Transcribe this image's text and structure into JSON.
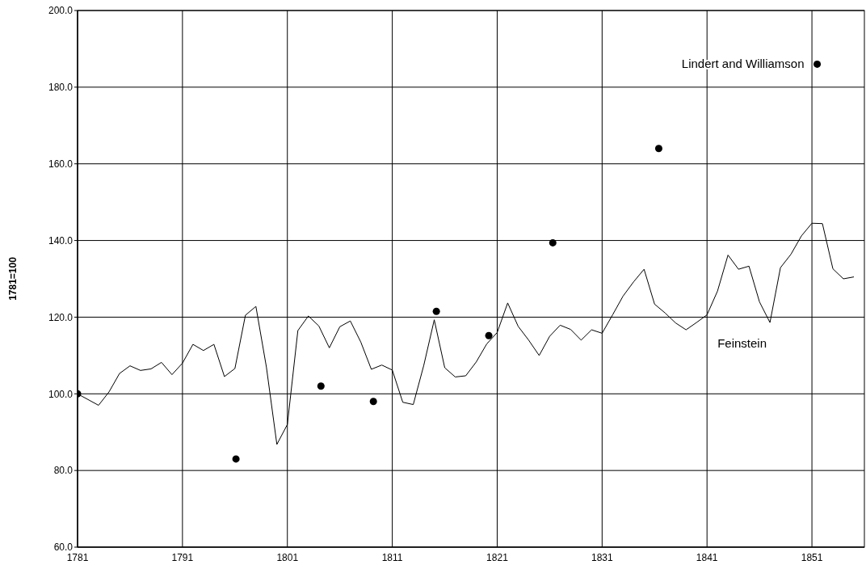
{
  "chart_data": {
    "type": "line",
    "ylabel": "1781=100",
    "xlim": [
      1781,
      1856
    ],
    "xticks": [
      1781,
      1791,
      1801,
      1811,
      1821,
      1831,
      1841,
      1851
    ],
    "ylim": [
      60,
      200
    ],
    "yticks": [
      {
        "value": 60,
        "label": "60.0"
      },
      {
        "value": 80,
        "label": "80.0"
      },
      {
        "value": 100,
        "label": "100.0"
      },
      {
        "value": 120,
        "label": "120.0"
      },
      {
        "value": 140,
        "label": "140.0"
      },
      {
        "value": 160,
        "label": "160.0"
      },
      {
        "value": 180,
        "label": "180.0"
      },
      {
        "value": 200,
        "label": "200.0"
      }
    ],
    "grid": true,
    "legend": false,
    "series": [
      {
        "name": "Feinstein",
        "color": "#000000",
        "marker": "none",
        "line_style": "solid",
        "x": [
          1781,
          1782,
          1783,
          1784,
          1785,
          1786,
          1787,
          1788,
          1789,
          1790,
          1791,
          1792,
          1793,
          1794,
          1795,
          1796,
          1797,
          1798,
          1799,
          1800,
          1801,
          1802,
          1803,
          1804,
          1805,
          1806,
          1807,
          1808,
          1809,
          1810,
          1811,
          1812,
          1813,
          1814,
          1815,
          1816,
          1817,
          1818,
          1819,
          1820,
          1821,
          1822,
          1823,
          1824,
          1825,
          1826,
          1827,
          1828,
          1829,
          1830,
          1831,
          1832,
          1833,
          1834,
          1835,
          1836,
          1837,
          1838,
          1839,
          1840,
          1841,
          1842,
          1843,
          1844,
          1845,
          1846,
          1847,
          1848,
          1849,
          1850,
          1851,
          1852,
          1853,
          1854,
          1855
        ],
        "values": [
          100,
          98.5,
          97,
          100.5,
          105.3,
          107.3,
          106.1,
          106.5,
          108.2,
          105,
          108,
          112.9,
          111.3,
          112.9,
          104.5,
          106.6,
          120.5,
          122.8,
          107,
          86.8,
          92,
          116.5,
          120.3,
          117.7,
          112,
          117.5,
          119,
          113.5,
          106.4,
          107.5,
          106.2,
          97.8,
          97.2,
          107.4,
          119.3,
          106.8,
          104.4,
          104.7,
          108.3,
          113,
          116,
          123.7,
          117.6,
          114,
          110,
          115,
          117.9,
          116.8,
          114,
          116.7,
          115.8,
          120.6,
          125.5,
          129.2,
          132.5,
          123.4,
          121.1,
          118.5,
          116.7,
          118.6,
          120.6,
          126.8,
          136.2,
          132.5,
          133.3,
          124,
          118.6,
          132.9,
          136.4,
          141.2,
          144.5,
          144.4,
          132.6,
          130,
          130.5
        ]
      },
      {
        "name": "Lindert and Williamson",
        "type": "scatter",
        "color": "#000000",
        "marker": "circle",
        "x": [
          1781,
          1796.1,
          1804.2,
          1809.2,
          1815.2,
          1820.2,
          1826.3,
          1836.4,
          1851.5
        ],
        "values": [
          100,
          83,
          102,
          98,
          121.5,
          115.2,
          139.4,
          164,
          186
        ]
      }
    ]
  }
}
